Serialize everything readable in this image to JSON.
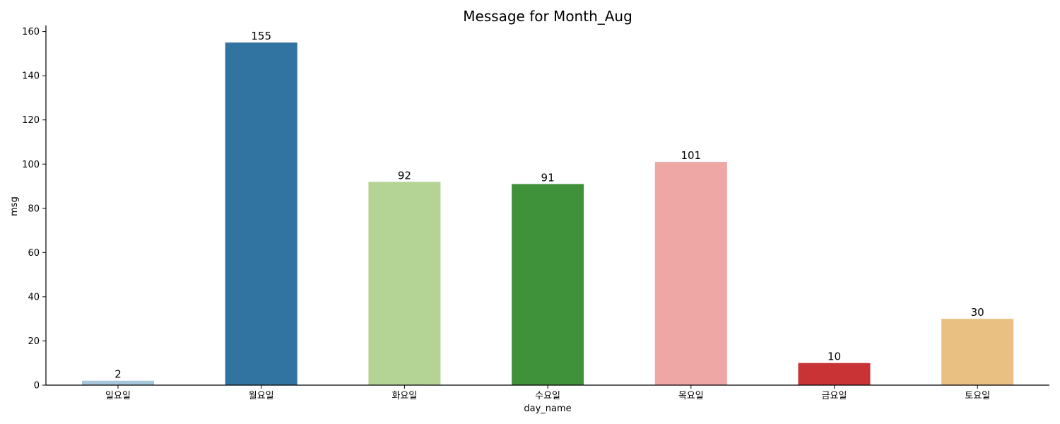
{
  "chart_data": {
    "type": "bar",
    "title": "Message for Month_Aug",
    "xlabel": "day_name",
    "ylabel": "msg",
    "categories": [
      "일요일",
      "월요일",
      "화요일",
      "수요일",
      "목요일",
      "금요일",
      "토요일"
    ],
    "values": [
      2,
      155,
      92,
      91,
      101,
      10,
      30
    ],
    "colors": [
      "#a6c6db",
      "#3274a1",
      "#b4d495",
      "#3f923a",
      "#efa7a6",
      "#c93335",
      "#eabf82"
    ],
    "yticks": [
      0,
      20,
      40,
      60,
      80,
      100,
      120,
      140,
      160
    ],
    "ylim": [
      0,
      162.75
    ],
    "grid": false,
    "legend": "none"
  }
}
